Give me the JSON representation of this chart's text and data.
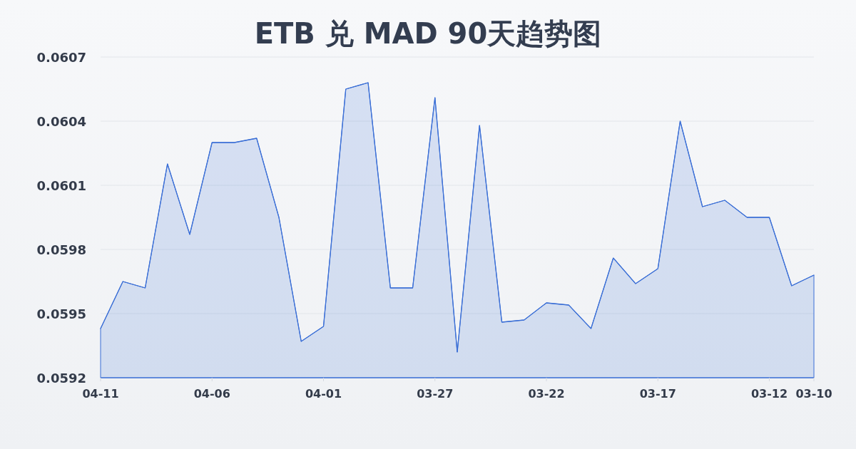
{
  "chart_data": {
    "type": "area",
    "title": "ETB 兑 MAD 90天趋势图",
    "categories": [
      "04-11",
      null,
      null,
      null,
      null,
      "04-06",
      null,
      null,
      null,
      null,
      "04-01",
      null,
      null,
      null,
      null,
      "03-27",
      null,
      null,
      null,
      null,
      "03-22",
      null,
      null,
      null,
      null,
      "03-17",
      null,
      null,
      null,
      null,
      "03-12",
      null,
      "03-10"
    ],
    "series": [
      {
        "color": "#3b6fd6",
        "values": [
          0.05943,
          0.05965,
          0.05962,
          0.0602,
          0.05987,
          0.0603,
          0.0603,
          0.06032,
          0.05995,
          0.05937,
          0.05944,
          0.06055,
          0.06058,
          0.05962,
          0.05962,
          0.06051,
          0.05932,
          0.06038,
          0.05946,
          0.05947,
          0.05955,
          0.05954,
          0.05943,
          0.05976,
          0.05964,
          0.05971,
          0.0604,
          0.06,
          0.06003,
          0.05995,
          0.05995,
          0.05963,
          0.05968
        ]
      }
    ],
    "ylim": [
      0.0592,
      0.0607
    ],
    "yticks": [
      0.0592,
      0.0595,
      0.0598,
      0.0601,
      0.0604,
      0.0607
    ],
    "grid": "y"
  }
}
